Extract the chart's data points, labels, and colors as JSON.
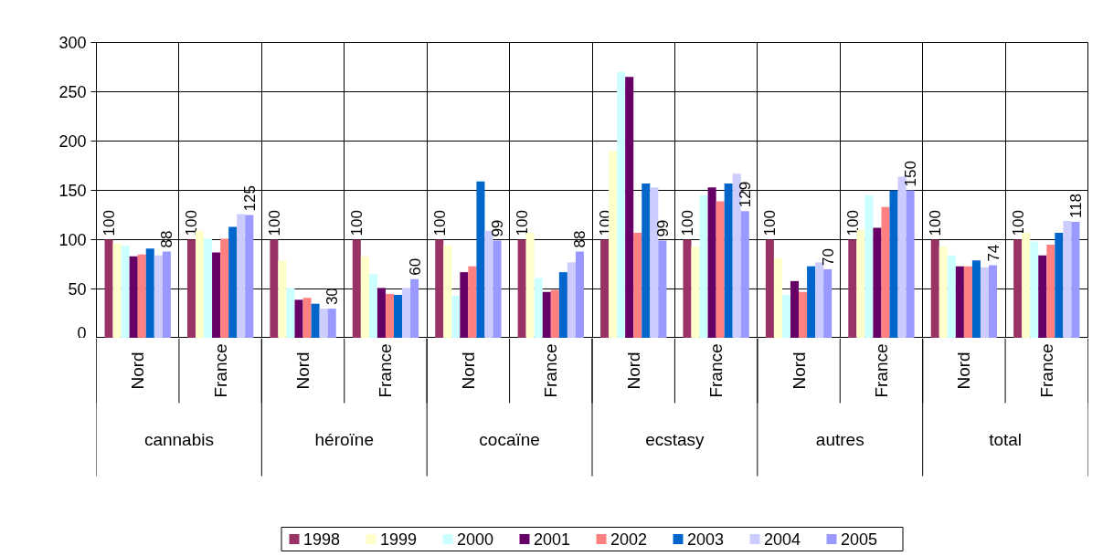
{
  "chart_data": {
    "type": "bar",
    "categories": [
      "Nord",
      "France",
      "Nord",
      "France",
      "Nord",
      "France",
      "Nord",
      "France",
      "Nord",
      "France",
      "Nord",
      "France"
    ],
    "annotations": [
      "cannabis",
      "héroïne",
      "cocaïne",
      "ecstasy",
      "autres",
      "total"
    ],
    "ylim": [
      0,
      300
    ],
    "yticks": [
      0,
      50,
      100,
      150,
      200,
      250,
      300
    ],
    "grid": true,
    "legend": "bottom",
    "series": [
      {
        "name": "1998",
        "color": "#993366",
        "values": [
          100,
          100,
          100,
          100,
          100,
          100,
          100,
          100,
          100,
          100,
          100,
          100
        ],
        "value_labels": [
          "100",
          "100",
          "100",
          "100",
          "100",
          "100",
          "100",
          "100",
          "100",
          "100",
          "100",
          "100"
        ]
      },
      {
        "name": "1999",
        "color": "#ffffcc",
        "values": [
          96,
          109,
          79,
          83,
          94,
          107,
          190,
          93,
          81,
          110,
          93,
          107
        ]
      },
      {
        "name": "2000",
        "color": "#ccffff",
        "values": [
          94,
          101,
          51,
          65,
          43,
          61,
          270,
          145,
          44,
          145,
          84,
          98
        ]
      },
      {
        "name": "2001",
        "color": "#660066",
        "values": [
          83,
          87,
          39,
          51,
          67,
          47,
          265,
          153,
          58,
          112,
          73,
          84
        ]
      },
      {
        "name": "2002",
        "color": "#ff8080",
        "values": [
          85,
          101,
          41,
          45,
          73,
          49,
          107,
          139,
          47,
          133,
          73,
          95
        ]
      },
      {
        "name": "2003",
        "color": "#0066cc",
        "values": [
          91,
          113,
          35,
          44,
          159,
          67,
          157,
          157,
          73,
          150,
          79,
          107
        ]
      },
      {
        "name": "2004",
        "color": "#ccccff",
        "values": [
          84,
          126,
          30,
          51,
          109,
          77,
          153,
          167,
          77,
          164,
          72,
          119
        ]
      },
      {
        "name": "2005",
        "color": "#9999ff",
        "values": [
          88,
          125,
          30,
          60,
          99,
          88,
          99,
          129,
          70,
          150,
          74,
          118
        ],
        "value_labels": [
          "88",
          "125",
          "30",
          "60",
          "99",
          "88",
          "99",
          "129",
          "70",
          "150",
          "74",
          "118"
        ]
      }
    ]
  }
}
